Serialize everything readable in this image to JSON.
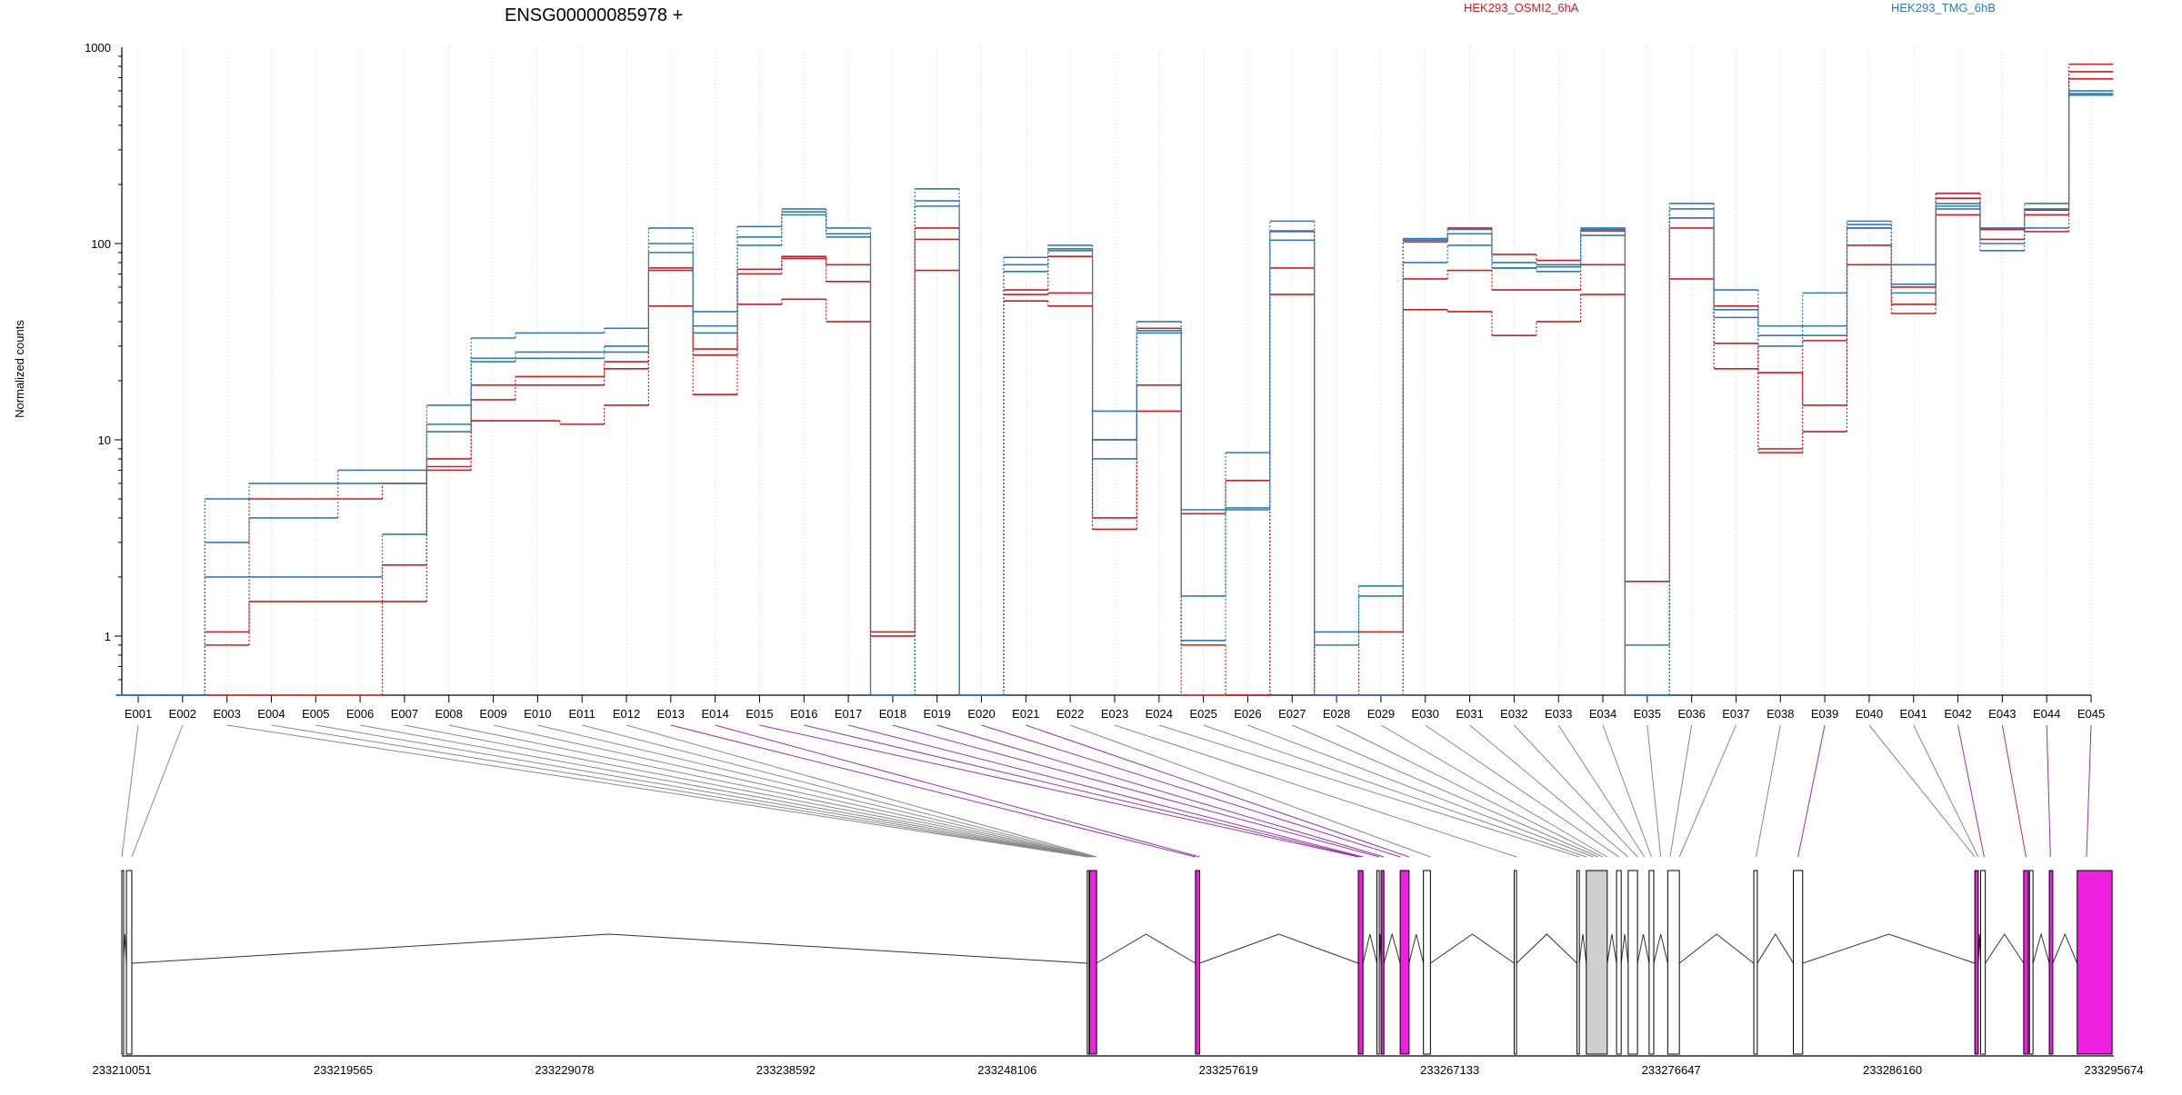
{
  "chart_data": {
    "type": "line",
    "title": "ENSG00000085978 +",
    "ylabel": "Normalized counts",
    "y_scale": "log",
    "ylim": [
      0.5,
      1000
    ],
    "y_ticks": [
      "1",
      "10",
      "100",
      "1000"
    ],
    "grid": "vertical dotted lines at each exon",
    "legend": [
      {
        "name": "HEK293_OSMI2_6hA",
        "color": "#d7191c"
      },
      {
        "name": "HEK293_TMG_6hB",
        "color": "#2c7bb6"
      }
    ],
    "categories": [
      "E001",
      "E002",
      "E003",
      "E004",
      "E005",
      "E006",
      "E007",
      "E008",
      "E009",
      "E010",
      "E011",
      "E012",
      "E013",
      "E014",
      "E015",
      "E016",
      "E017",
      "E018",
      "E019",
      "E020",
      "E021",
      "E022",
      "E023",
      "E024",
      "E025",
      "E026",
      "E027",
      "E028",
      "E029",
      "E030",
      "E031",
      "E032",
      "E033",
      "E034",
      "E035",
      "E036",
      "E037",
      "E038",
      "E039",
      "E040",
      "E041",
      "E042",
      "E043",
      "E044",
      "E045"
    ],
    "series": [
      {
        "color": "#d7191c",
        "values": [
          0.5,
          0.5,
          0.9,
          1.5,
          1.5,
          1.5,
          2.3,
          8.0,
          19,
          21,
          21,
          25,
          75,
          29,
          74,
          86,
          78,
          1.05,
          120,
          0.5,
          55,
          56,
          4.0,
          19,
          0.9,
          0.5,
          75,
          0.5,
          1.05,
          66,
          73,
          58,
          58,
          78,
          1.9,
          120,
          31,
          9.0,
          32,
          98,
          49,
          180,
          118,
          148,
          820
        ]
      },
      {
        "color": "#d7191c",
        "values": [
          0.5,
          0.5,
          1.05,
          5.0,
          5.0,
          5.0,
          6.0,
          7.3,
          16,
          19,
          19,
          23,
          73,
          27,
          70,
          84,
          64,
          1.0,
          105,
          0.5,
          51,
          48,
          3.5,
          14,
          0.5,
          0.5,
          55,
          0.5,
          0.5,
          46,
          45,
          34,
          40,
          55,
          0.5,
          66,
          23,
          8.6,
          11,
          78,
          44,
          140,
          105,
          140,
          690
        ]
      },
      {
        "color": "#d7191c",
        "values": [
          0.5,
          0.5,
          0.5,
          0.5,
          0.5,
          0.5,
          1.5,
          7.0,
          12.5,
          12.5,
          12,
          15,
          48,
          17,
          49,
          52,
          40,
          0.5,
          73,
          0.5,
          58,
          86,
          10,
          37,
          4.2,
          6.2,
          115,
          0.5,
          0.5,
          102,
          120,
          88,
          82,
          116,
          0.5,
          135,
          48,
          22,
          15,
          120,
          60,
          170,
          118,
          115,
          750
        ]
      },
      {
        "color": "#2c7bb6",
        "values": [
          0.5,
          0.5,
          5.0,
          6.0,
          6.0,
          7.0,
          7.0,
          15,
          33,
          35,
          35,
          37,
          120,
          45,
          122,
          150,
          120,
          0.5,
          190,
          0.5,
          85,
          98,
          14,
          40,
          1.6,
          8.6,
          130,
          1.05,
          1.8,
          106,
          118,
          80,
          78,
          120,
          0.5,
          160,
          58,
          38,
          56,
          130,
          78,
          160,
          120,
          160,
          600
        ]
      },
      {
        "color": "#2c7bb6",
        "values": [
          0.5,
          0.5,
          3.0,
          4.0,
          4.0,
          6.0,
          6.0,
          12,
          26,
          28,
          28,
          30,
          100,
          38,
          108,
          145,
          112,
          0.5,
          165,
          0.5,
          78,
          94,
          10,
          36,
          0.95,
          4.5,
          116,
          0.9,
          1.6,
          80,
          98,
          75,
          76,
          118,
          0.9,
          150,
          46,
          30,
          38,
          125,
          62,
          155,
          100,
          150,
          580
        ]
      },
      {
        "color": "#2c7bb6",
        "values": [
          0.5,
          0.5,
          2.0,
          2.0,
          2.0,
          2.0,
          3.3,
          11,
          25,
          26,
          26,
          28,
          90,
          35,
          98,
          140,
          108,
          0.5,
          155,
          0.5,
          72,
          92,
          8.0,
          35,
          4.4,
          4.4,
          104,
          0.5,
          0.5,
          104,
          112,
          75,
          72,
          110,
          0.5,
          135,
          42,
          34,
          34,
          120,
          56,
          150,
          92,
          120,
          570
        ]
      }
    ],
    "gene_model": {
      "coordinate_ticks": [
        "233210051",
        "233219565",
        "233229078",
        "233238592",
        "233248106",
        "233257619",
        "233267133",
        "233276647",
        "233286160",
        "233295674"
      ],
      "genomic_range": [
        233210051,
        233295674
      ],
      "exon_regions": [
        {
          "start": 233210051,
          "end": 233210120,
          "fill": "white"
        },
        {
          "start": 233210250,
          "end": 233210480,
          "fill": "white"
        },
        {
          "start": 233251550,
          "end": 233251620,
          "fill": "white"
        },
        {
          "start": 233251650,
          "end": 233251950,
          "fill": "magenta"
        },
        {
          "start": 233256200,
          "end": 233256380,
          "fill": "magenta"
        },
        {
          "start": 233263200,
          "end": 233263400,
          "fill": "magenta"
        },
        {
          "start": 233264000,
          "end": 233264100,
          "fill": "white"
        },
        {
          "start": 233264180,
          "end": 233264300,
          "fill": "magenta"
        },
        {
          "start": 233265000,
          "end": 233265380,
          "fill": "magenta"
        },
        {
          "start": 233266000,
          "end": 233266300,
          "fill": "white"
        },
        {
          "start": 233269900,
          "end": 233270000,
          "fill": "white"
        },
        {
          "start": 233272600,
          "end": 233272700,
          "fill": "white"
        },
        {
          "start": 233273000,
          "end": 233273900,
          "fill": "grey"
        },
        {
          "start": 233274300,
          "end": 233274500,
          "fill": "white"
        },
        {
          "start": 233274800,
          "end": 233275200,
          "fill": "white"
        },
        {
          "start": 233275700,
          "end": 233275900,
          "fill": "white"
        },
        {
          "start": 233276500,
          "end": 233277000,
          "fill": "white"
        },
        {
          "start": 233280200,
          "end": 233280350,
          "fill": "white"
        },
        {
          "start": 233281900,
          "end": 233282300,
          "fill": "white"
        },
        {
          "start": 233289700,
          "end": 233289850,
          "fill": "magenta"
        },
        {
          "start": 233289950,
          "end": 233290150,
          "fill": "white"
        },
        {
          "start": 233291800,
          "end": 233292000,
          "fill": "magenta"
        },
        {
          "start": 233292050,
          "end": 233292200,
          "fill": "white"
        },
        {
          "start": 233292900,
          "end": 233293050,
          "fill": "magenta"
        },
        {
          "start": 233294100,
          "end": 233295600,
          "fill": "magenta"
        }
      ],
      "exon_bin_genomic_positions": [
        233210051,
        233210480,
        233251550,
        233251580,
        233251600,
        233251620,
        233251650,
        233251700,
        233251750,
        233251800,
        233251850,
        233251950,
        233256200,
        233256380,
        233263200,
        233263300,
        233263400,
        233264100,
        233264300,
        233265000,
        233265380,
        233266300,
        233270000,
        233272700,
        233273000,
        233273300,
        233273500,
        233273700,
        233273900,
        233274400,
        233274800,
        233275200,
        233275500,
        233275800,
        233276200,
        233276600,
        233277000,
        233280300,
        233282100,
        233289700,
        233289850,
        233290100,
        233291900,
        233292950,
        233294500
      ],
      "exon_bin_link_colors": [
        "grey",
        "grey",
        "grey",
        "grey",
        "grey",
        "grey",
        "grey",
        "grey",
        "grey",
        "grey",
        "grey",
        "grey",
        "purple",
        "purple",
        "purple",
        "purple",
        "purple",
        "purple",
        "purple",
        "purple",
        "purple",
        "grey",
        "grey",
        "grey",
        "grey",
        "grey",
        "grey",
        "grey",
        "grey",
        "grey",
        "grey",
        "grey",
        "grey",
        "grey",
        "grey",
        "grey",
        "grey",
        "grey",
        "purple",
        "grey",
        "grey",
        "purple",
        "purple",
        "purple",
        "purple"
      ]
    }
  }
}
